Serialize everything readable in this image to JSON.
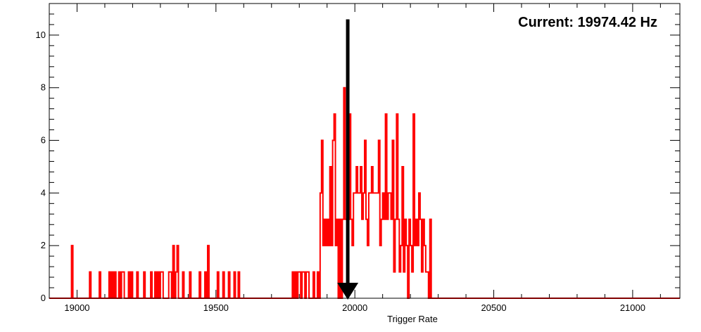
{
  "chart_data": {
    "type": "histogram",
    "xlabel": "Trigger Rate",
    "ylabel": "",
    "xlim": [
      18900,
      21170
    ],
    "ylim": [
      0,
      11.2
    ],
    "x_ticks": [
      19000,
      19500,
      20000,
      20500,
      21000
    ],
    "y_ticks": [
      0,
      2,
      4,
      6,
      8,
      10
    ],
    "grid": false,
    "legend": "none",
    "annotation": "Current: 19974.42 Hz",
    "marker_value": 19974.42,
    "marker_top": 10.6,
    "series": [
      {
        "color": "#ff0000",
        "bin_width": 5,
        "bins": [
          [
            18980,
            2
          ],
          [
            19045,
            1
          ],
          [
            19080,
            1
          ],
          [
            19115,
            1
          ],
          [
            19125,
            1
          ],
          [
            19135,
            1
          ],
          [
            19150,
            1
          ],
          [
            19160,
            1
          ],
          [
            19165,
            1
          ],
          [
            19185,
            1
          ],
          [
            19195,
            1
          ],
          [
            19215,
            1
          ],
          [
            19240,
            1
          ],
          [
            19265,
            1
          ],
          [
            19280,
            1
          ],
          [
            19290,
            1
          ],
          [
            19300,
            1
          ],
          [
            19305,
            1
          ],
          [
            19330,
            1
          ],
          [
            19335,
            1
          ],
          [
            19345,
            2
          ],
          [
            19355,
            1
          ],
          [
            19360,
            2
          ],
          [
            19380,
            1
          ],
          [
            19405,
            1
          ],
          [
            19440,
            1
          ],
          [
            19460,
            1
          ],
          [
            19470,
            2
          ],
          [
            19505,
            1
          ],
          [
            19525,
            1
          ],
          [
            19545,
            1
          ],
          [
            19565,
            1
          ],
          [
            19580,
            1
          ],
          [
            19775,
            1
          ],
          [
            19785,
            1
          ],
          [
            19795,
            1
          ],
          [
            19800,
            1
          ],
          [
            19810,
            1
          ],
          [
            19815,
            1
          ],
          [
            19825,
            1
          ],
          [
            19830,
            1
          ],
          [
            19850,
            1
          ],
          [
            19865,
            1
          ],
          [
            19875,
            4
          ],
          [
            19880,
            6
          ],
          [
            19885,
            2
          ],
          [
            19890,
            3
          ],
          [
            19895,
            2
          ],
          [
            19900,
            3
          ],
          [
            19905,
            2
          ],
          [
            19910,
            5
          ],
          [
            19915,
            2
          ],
          [
            19920,
            6
          ],
          [
            19925,
            7
          ],
          [
            19930,
            2
          ],
          [
            19935,
            3
          ],
          [
            19945,
            3
          ],
          [
            19955,
            3
          ],
          [
            19960,
            8
          ],
          [
            19965,
            3
          ],
          [
            19970,
            3
          ],
          [
            19975,
            3
          ],
          [
            19980,
            7
          ],
          [
            19985,
            3
          ],
          [
            19990,
            2
          ],
          [
            19995,
            4
          ],
          [
            20000,
            4
          ],
          [
            20005,
            5
          ],
          [
            20010,
            4
          ],
          [
            20015,
            4
          ],
          [
            20020,
            5
          ],
          [
            20025,
            3
          ],
          [
            20030,
            4
          ],
          [
            20035,
            6
          ],
          [
            20040,
            3
          ],
          [
            20045,
            2
          ],
          [
            20050,
            4
          ],
          [
            20055,
            4
          ],
          [
            20060,
            5
          ],
          [
            20065,
            4
          ],
          [
            20070,
            4
          ],
          [
            20075,
            4
          ],
          [
            20080,
            4
          ],
          [
            20085,
            6
          ],
          [
            20090,
            2
          ],
          [
            20095,
            3
          ],
          [
            20100,
            4
          ],
          [
            20105,
            3
          ],
          [
            20110,
            7
          ],
          [
            20115,
            3
          ],
          [
            20120,
            4
          ],
          [
            20125,
            4
          ],
          [
            20130,
            3
          ],
          [
            20135,
            6
          ],
          [
            20140,
            1
          ],
          [
            20145,
            3
          ],
          [
            20150,
            7
          ],
          [
            20155,
            3
          ],
          [
            20160,
            1
          ],
          [
            20165,
            2
          ],
          [
            20170,
            5
          ],
          [
            20175,
            1
          ],
          [
            20180,
            3
          ],
          [
            20185,
            2
          ],
          [
            20190,
            0
          ],
          [
            20195,
            3
          ],
          [
            20200,
            2
          ],
          [
            20205,
            1
          ],
          [
            20210,
            7
          ],
          [
            20215,
            2
          ],
          [
            20220,
            3
          ],
          [
            20225,
            2
          ],
          [
            20230,
            4
          ],
          [
            20235,
            3
          ],
          [
            20240,
            1
          ],
          [
            20245,
            3
          ],
          [
            20250,
            2
          ],
          [
            20255,
            1
          ],
          [
            20260,
            1
          ],
          [
            20270,
            3
          ]
        ]
      }
    ]
  }
}
